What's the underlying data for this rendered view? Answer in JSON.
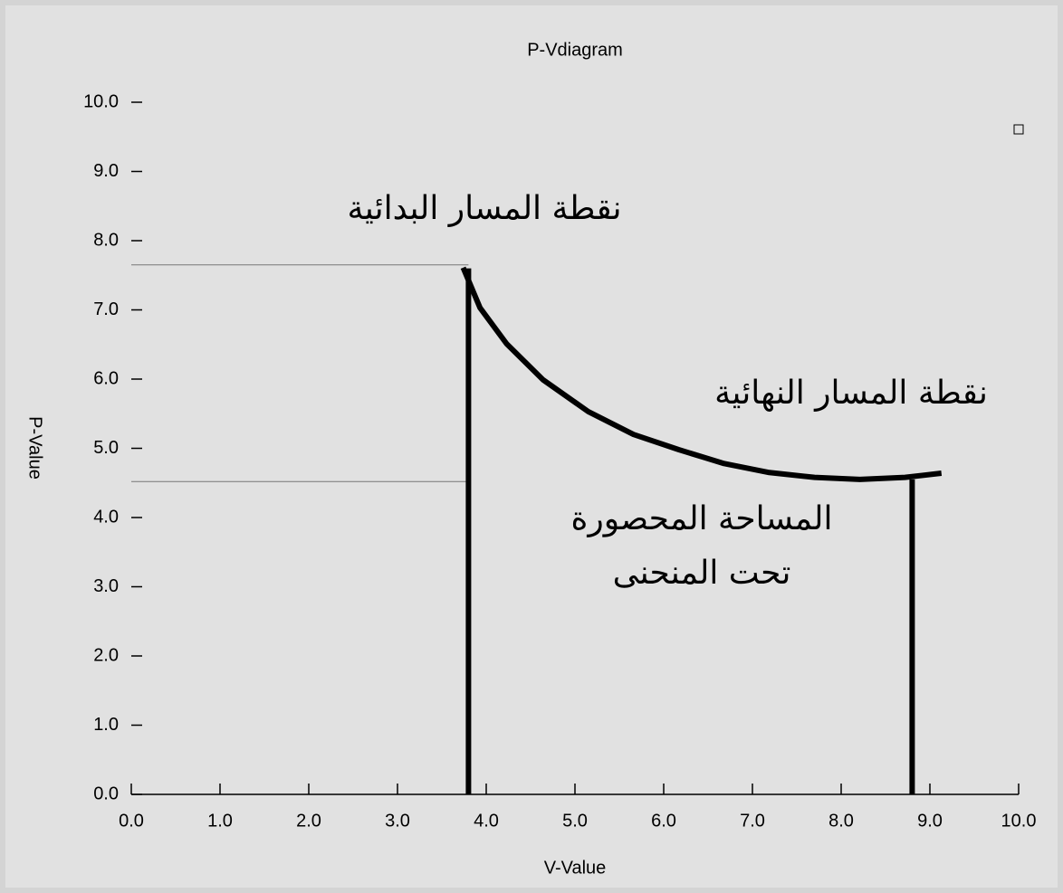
{
  "chart_data": {
    "type": "line",
    "title": "P-Vdiagram",
    "x_label": "V-Value",
    "y_label": "P-Value",
    "xlim": [
      0,
      10
    ],
    "ylim": [
      0,
      10
    ],
    "xticks": [
      {
        "value": 0,
        "label": "0.0"
      },
      {
        "value": 1,
        "label": "1.0"
      },
      {
        "value": 2,
        "label": "2.0"
      },
      {
        "value": 3,
        "label": "3.0"
      },
      {
        "value": 4,
        "label": "4.0"
      },
      {
        "value": 5,
        "label": "5.0"
      },
      {
        "value": 6,
        "label": "6.0"
      },
      {
        "value": 7,
        "label": "7.0"
      },
      {
        "value": 8,
        "label": "8.0"
      },
      {
        "value": 9,
        "label": "9.0"
      },
      {
        "value": 10,
        "label": "10.0"
      }
    ],
    "yticks": [
      {
        "value": 0,
        "label": "0.0"
      },
      {
        "value": 1,
        "label": "1.0"
      },
      {
        "value": 2,
        "label": "2.0"
      },
      {
        "value": 3,
        "label": "3.0"
      },
      {
        "value": 4,
        "label": "4.0"
      },
      {
        "value": 5,
        "label": "5.0"
      },
      {
        "value": 6,
        "label": "6.0"
      },
      {
        "value": 7,
        "label": "7.0"
      },
      {
        "value": 8,
        "label": "8.0"
      },
      {
        "value": 9,
        "label": "9.0"
      },
      {
        "value": 10,
        "label": "10.0"
      }
    ],
    "series": [
      {
        "color": "#000000",
        "x": [
          3.74,
          3.93,
          4.23,
          4.64,
          5.15,
          5.66,
          6.17,
          6.68,
          7.19,
          7.7,
          8.21,
          8.72,
          9.13
        ],
        "values": [
          7.61,
          7.03,
          6.51,
          5.99,
          5.53,
          5.2,
          4.98,
          4.78,
          4.65,
          4.58,
          4.55,
          4.58,
          4.64
        ]
      }
    ],
    "drop_lines": [
      {
        "x": 3.8,
        "y": 7.6
      },
      {
        "x": 8.8,
        "y": 4.55
      }
    ],
    "guide_lines": [
      {
        "x": 3.8,
        "y": 7.65
      },
      {
        "x": 3.8,
        "y": 4.52
      }
    ],
    "annotations": [
      "نقطة المسار البدائية",
      "نقطة المسار النهائية",
      "المساحة المحصورة",
      "تحت المنحنى"
    ]
  }
}
